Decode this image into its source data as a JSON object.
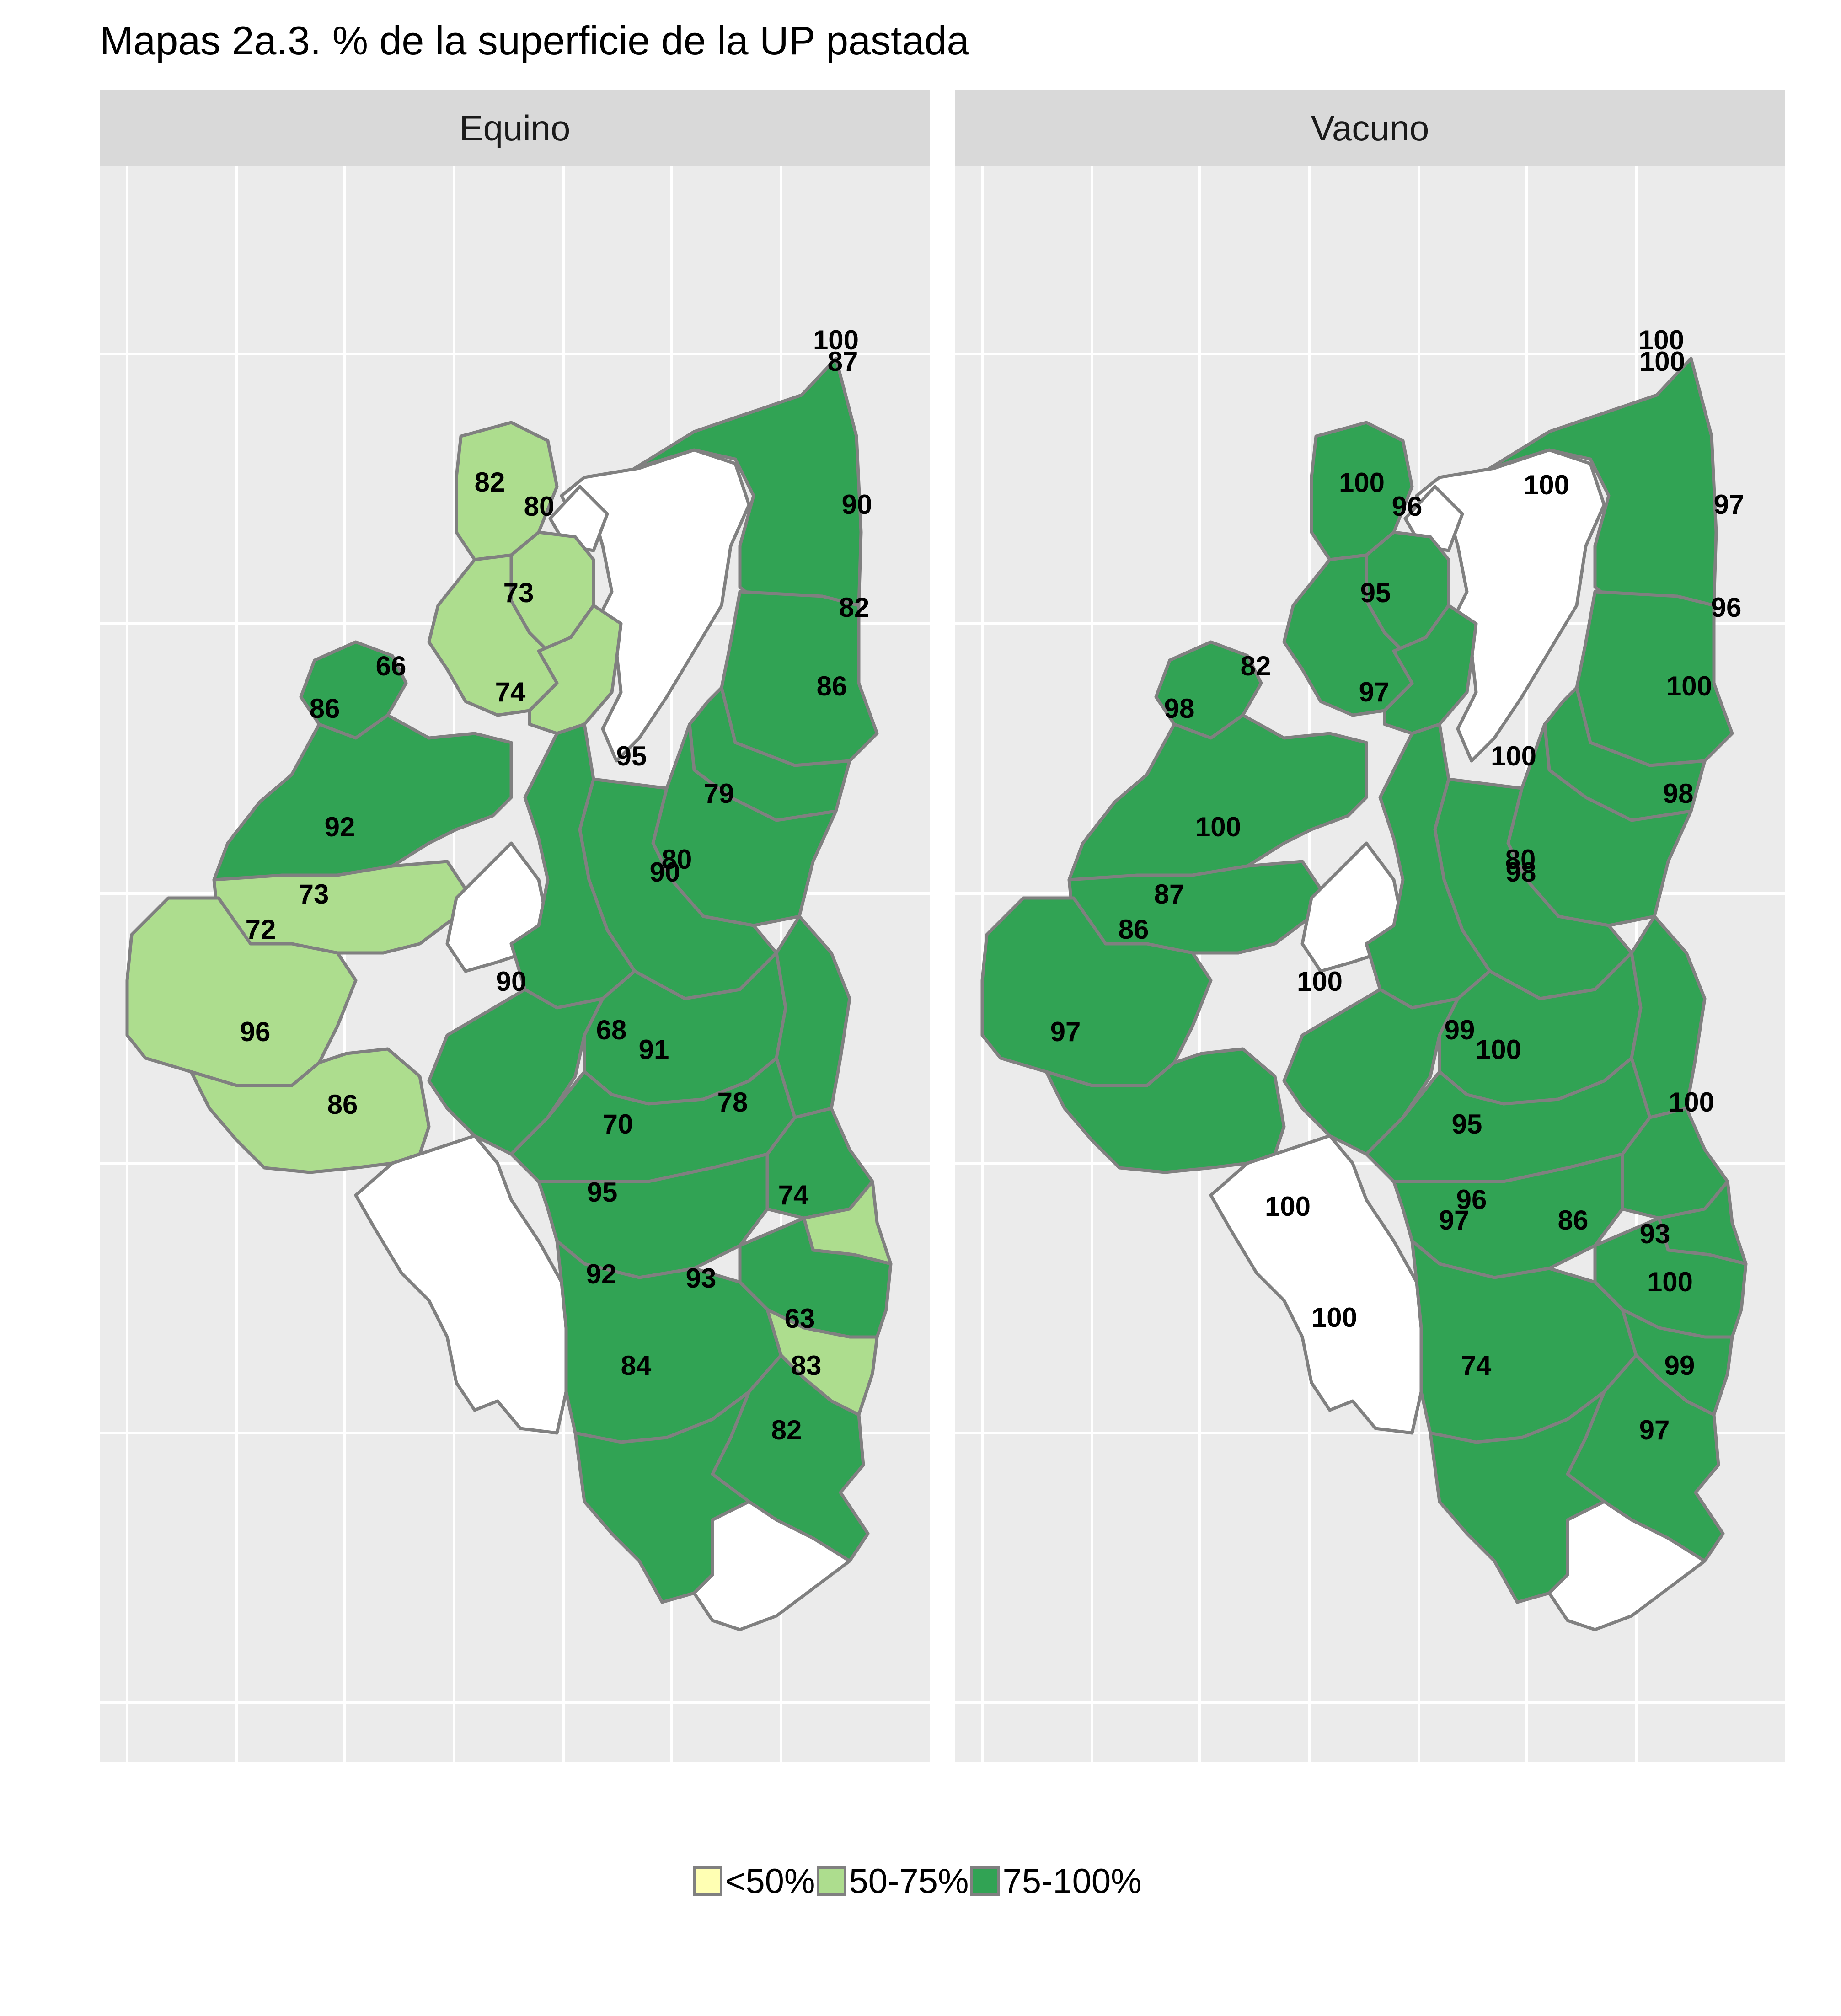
{
  "title": "Mapas 2a.3. % de la superficie de la UP pastada",
  "legend": {
    "items": [
      {
        "label": "<50%",
        "color": "#ffffb3"
      },
      {
        "label": "50-75%",
        "color": "#addd8e"
      },
      {
        "label": "75-100%",
        "color": "#31a354"
      }
    ]
  },
  "panels": [
    {
      "name": "Equino",
      "labels": [
        {
          "text": "100",
          "value": 100
        },
        {
          "text": "87",
          "value": 87
        },
        {
          "text": "82",
          "value": 82
        },
        {
          "text": "80",
          "value": 80
        },
        {
          "text": "90",
          "value": 90
        },
        {
          "text": "73",
          "value": 73
        },
        {
          "text": "82",
          "value": 82
        },
        {
          "text": "66",
          "value": 66
        },
        {
          "text": "74",
          "value": 74
        },
        {
          "text": "86",
          "value": 86
        },
        {
          "text": "86",
          "value": 86
        },
        {
          "text": "95",
          "value": 95
        },
        {
          "text": "79",
          "value": 79
        },
        {
          "text": "90",
          "value": 90
        },
        {
          "text": "80",
          "value": 80
        },
        {
          "text": "92",
          "value": 92
        },
        {
          "text": "73",
          "value": 73
        },
        {
          "text": "72",
          "value": 72
        },
        {
          "text": "90",
          "value": 90
        },
        {
          "text": "91",
          "value": 91
        },
        {
          "text": "68",
          "value": 68
        },
        {
          "text": "96",
          "value": 96
        },
        {
          "text": "70",
          "value": 70
        },
        {
          "text": "86",
          "value": 86
        },
        {
          "text": "78",
          "value": 78
        },
        {
          "text": "74",
          "value": 74
        },
        {
          "text": "95",
          "value": 95
        },
        {
          "text": "92",
          "value": 92
        },
        {
          "text": "93",
          "value": 93
        },
        {
          "text": "63",
          "value": 63
        },
        {
          "text": "83",
          "value": 83
        },
        {
          "text": "84",
          "value": 84
        },
        {
          "text": "82",
          "value": 82
        }
      ]
    },
    {
      "name": "Vacuno",
      "labels": [
        {
          "text": "100",
          "value": 100
        },
        {
          "text": "100",
          "value": 100
        },
        {
          "text": "100",
          "value": 100
        },
        {
          "text": "100",
          "value": 100
        },
        {
          "text": "96",
          "value": 96
        },
        {
          "text": "97",
          "value": 97
        },
        {
          "text": "95",
          "value": 95
        },
        {
          "text": "96",
          "value": 96
        },
        {
          "text": "82",
          "value": 82
        },
        {
          "text": "97",
          "value": 97
        },
        {
          "text": "98",
          "value": 98
        },
        {
          "text": "100",
          "value": 100
        },
        {
          "text": "100",
          "value": 100
        },
        {
          "text": "98",
          "value": 98
        },
        {
          "text": "100",
          "value": 100
        },
        {
          "text": "80",
          "value": 80
        },
        {
          "text": "98",
          "value": 98
        },
        {
          "text": "87",
          "value": 87
        },
        {
          "text": "86",
          "value": 86
        },
        {
          "text": "100",
          "value": 100
        },
        {
          "text": "100",
          "value": 100
        },
        {
          "text": "99",
          "value": 99
        },
        {
          "text": "97",
          "value": 97
        },
        {
          "text": "95",
          "value": 95
        },
        {
          "text": "96",
          "value": 96
        },
        {
          "text": "100",
          "value": 100
        },
        {
          "text": "100",
          "value": 100
        },
        {
          "text": "97",
          "value": 97
        },
        {
          "text": "86",
          "value": 86
        },
        {
          "text": "93",
          "value": 93
        },
        {
          "text": "100",
          "value": 100
        },
        {
          "text": "100",
          "value": 100
        },
        {
          "text": "74",
          "value": 74
        },
        {
          "text": "99",
          "value": 99
        },
        {
          "text": "97",
          "value": 97
        }
      ]
    }
  ]
}
